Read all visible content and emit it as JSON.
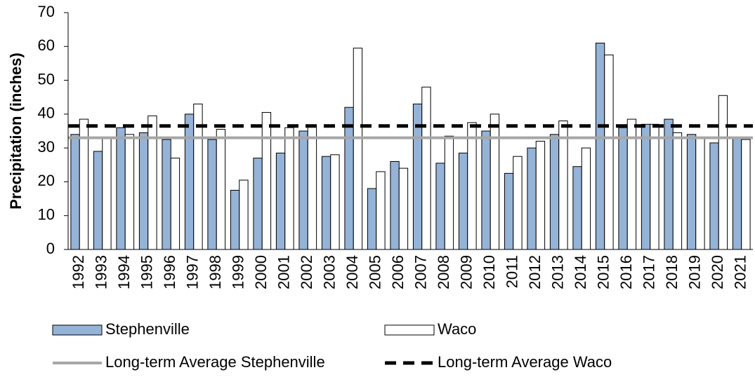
{
  "chart_data": {
    "type": "bar",
    "y_label": "Precipitation (inches)",
    "categories": [
      "1992",
      "1993",
      "1994",
      "1995",
      "1996",
      "1997",
      "1998",
      "1999",
      "2000",
      "2001",
      "2002",
      "2003",
      "2004",
      "2005",
      "2006",
      "2007",
      "2008",
      "2009",
      "2010",
      "2011",
      "2012",
      "2013",
      "2014",
      "2015",
      "2016",
      "2017",
      "2018",
      "2019",
      "2020",
      "2021"
    ],
    "series": [
      {
        "name": "Stephenville",
        "color": "#95b3d7",
        "values": [
          34,
          29,
          36,
          34.5,
          32.5,
          40,
          32.5,
          17.5,
          27,
          28.5,
          35,
          27.5,
          42,
          18,
          26,
          43,
          25.5,
          28.5,
          35,
          22.5,
          30,
          34,
          24.5,
          61,
          36,
          37,
          38.5,
          34,
          31.5,
          33
        ]
      },
      {
        "name": "Waco",
        "color": "#ffffff",
        "values": [
          38.5,
          33,
          34,
          39.5,
          27,
          43,
          35.5,
          20.5,
          40.5,
          36,
          36.5,
          28,
          59.5,
          23,
          24,
          48,
          33.5,
          37.5,
          40,
          27.5,
          32,
          38,
          30,
          57.5,
          38.5,
          37,
          34.5,
          33,
          45.5,
          32.5
        ]
      }
    ],
    "reference_lines": [
      {
        "name": "Long-term Average Stephenville",
        "value": 33,
        "color": "#a6a6a6",
        "dashed": false
      },
      {
        "name": "Long-term Average Waco",
        "value": 36.5,
        "color": "#000000",
        "dashed": true
      }
    ],
    "ylim": [
      0,
      70
    ],
    "yticks": [
      0,
      10,
      20,
      30,
      40,
      50,
      60,
      70
    ]
  }
}
